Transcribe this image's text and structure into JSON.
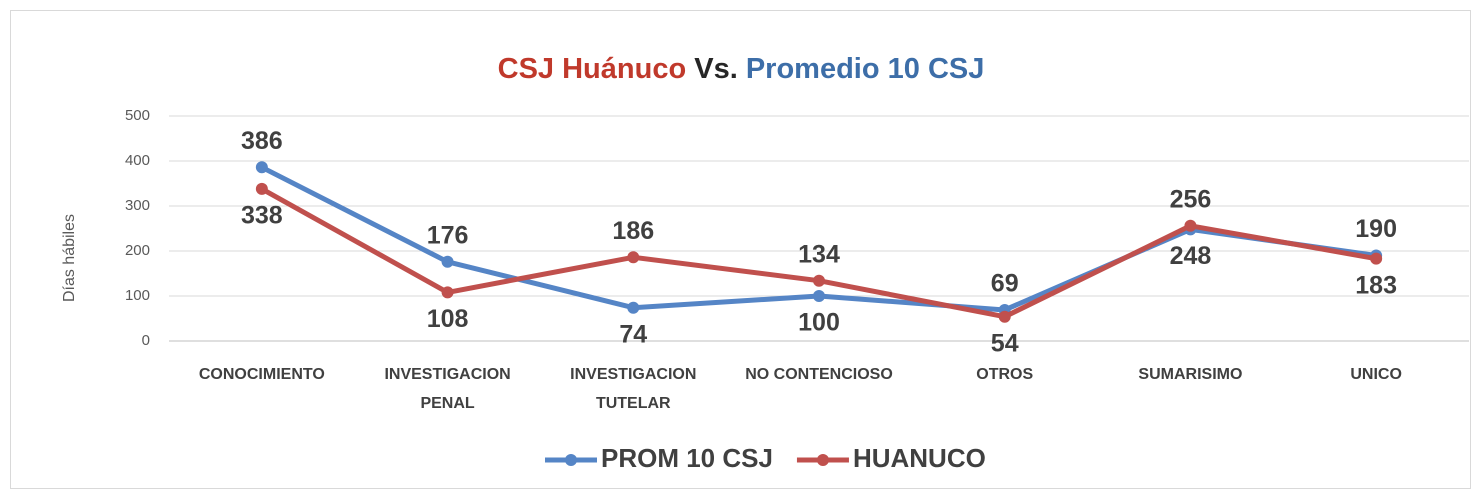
{
  "chart_data": {
    "type": "line",
    "title": [
      "CSJ Huánuco",
      "Vs.",
      "Promedio 10 CSJ"
    ],
    "title_colors": [
      "#c0392b",
      "#262626",
      "#3d6ea8"
    ],
    "ylabel": "Días hábiles",
    "categories": [
      "CONOCIMIENTO",
      "INVESTIGACION PENAL",
      "INVESTIGACION TUTELAR",
      "NO CONTENCIOSO",
      "OTROS",
      "SUMARISIMO",
      "UNICO"
    ],
    "series": [
      {
        "name": "PROM 10 CSJ",
        "color": "#5585c6",
        "values": [
          386,
          176,
          74,
          100,
          69,
          248,
          190
        ]
      },
      {
        "name": "HUANUCO",
        "color": "#c0504d",
        "values": [
          338,
          108,
          186,
          134,
          54,
          256,
          183
        ]
      }
    ],
    "ylim": [
      0,
      500
    ],
    "yticks": [
      0,
      100,
      200,
      300,
      400,
      500
    ],
    "grid": true,
    "legend": "bottom"
  }
}
